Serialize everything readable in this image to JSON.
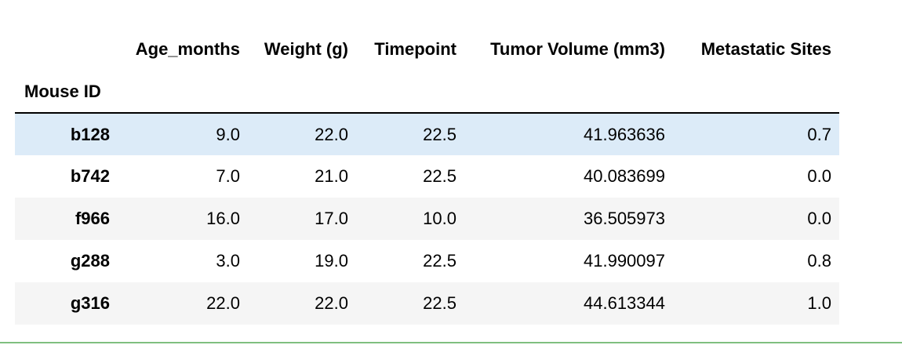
{
  "table": {
    "columns": [
      "Age_months",
      "Weight (g)",
      "Timepoint",
      "Tumor Volume (mm3)",
      "Metastatic Sites"
    ],
    "index_name": "Mouse ID",
    "rows": [
      {
        "id": "b128",
        "values": [
          "9.0",
          "22.0",
          "22.5",
          "41.963636",
          "0.7"
        ]
      },
      {
        "id": "b742",
        "values": [
          "7.0",
          "21.0",
          "22.5",
          "40.083699",
          "0.0"
        ]
      },
      {
        "id": "f966",
        "values": [
          "16.0",
          "17.0",
          "10.0",
          "36.505973",
          "0.0"
        ]
      },
      {
        "id": "g288",
        "values": [
          "3.0",
          "19.0",
          "22.5",
          "41.990097",
          "0.8"
        ]
      },
      {
        "id": "g316",
        "values": [
          "22.0",
          "22.0",
          "22.5",
          "44.613344",
          "1.0"
        ]
      }
    ],
    "highlighted_row": 0
  },
  "colors": {
    "row_stripe": "#f5f5f5",
    "row_hover": "#dcebf8",
    "cell_separator": "#7fbf7f"
  }
}
